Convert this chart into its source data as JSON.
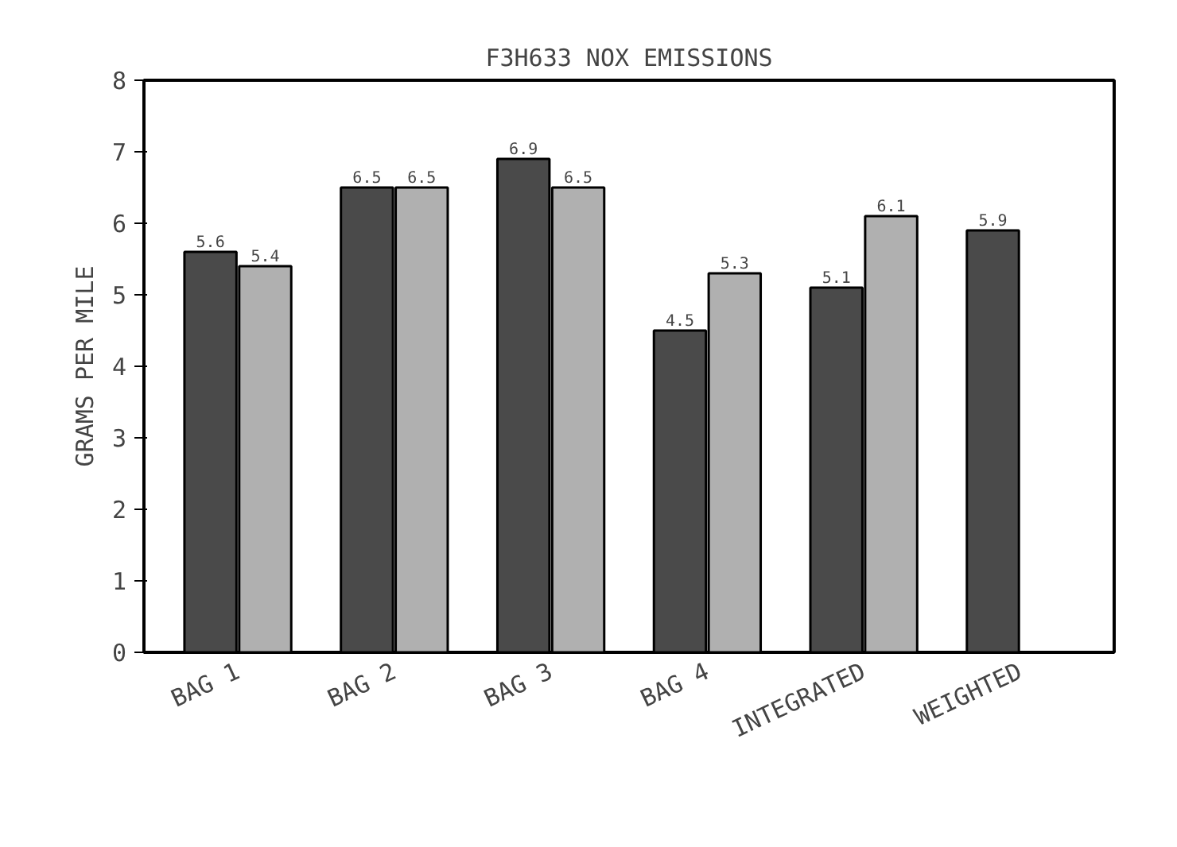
{
  "chart_data": {
    "type": "bar",
    "title": "F3H633 NOX EMISSIONS",
    "ylabel": "GRAMS PER MILE",
    "categories": [
      "BAG 1",
      "BAG 2",
      "BAG 3",
      "BAG 4",
      "INTEGRATED",
      "WEIGHTED"
    ],
    "series": [
      {
        "color": "#4a4a4a",
        "values": [
          5.6,
          6.5,
          6.9,
          4.5,
          5.1,
          5.9
        ]
      },
      {
        "color": "#b0b0b0",
        "values": [
          5.4,
          6.5,
          6.5,
          5.3,
          6.1,
          null
        ]
      }
    ],
    "ylim": [
      0,
      8
    ],
    "yticks": [
      0,
      1,
      2,
      3,
      4,
      5,
      6,
      7,
      8
    ],
    "data_labels": true,
    "grid": false
  }
}
